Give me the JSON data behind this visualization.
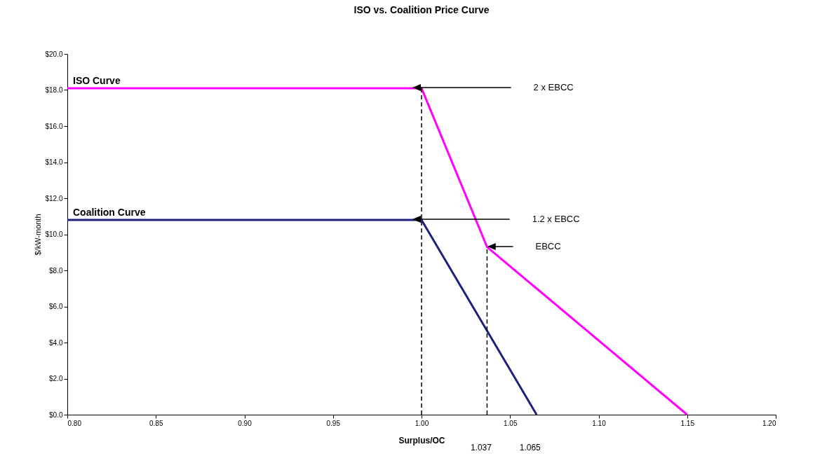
{
  "chart_data": {
    "type": "line",
    "title": "ISO vs. Coalition Price Curve",
    "xlabel": "Surplus/OC",
    "ylabel": "$/kW-month",
    "xlim": [
      0.8,
      1.2
    ],
    "ylim": [
      0,
      20
    ],
    "xticks": [
      {
        "value": 0.8,
        "label": "0.80"
      },
      {
        "value": 0.85,
        "label": "0.85"
      },
      {
        "value": 0.9,
        "label": "0.90"
      },
      {
        "value": 0.95,
        "label": "0.95"
      },
      {
        "value": 1.0,
        "label": "1.00"
      },
      {
        "value": 1.05,
        "label": "1.05"
      },
      {
        "value": 1.1,
        "label": "1.10"
      },
      {
        "value": 1.15,
        "label": "1.15"
      },
      {
        "value": 1.2,
        "label": "1.20"
      }
    ],
    "yticks": [
      {
        "value": 0,
        "label": "$0.0"
      },
      {
        "value": 2,
        "label": "$2.0"
      },
      {
        "value": 4,
        "label": "$4.0"
      },
      {
        "value": 6,
        "label": "$6.0"
      },
      {
        "value": 8,
        "label": "$8.0"
      },
      {
        "value": 10,
        "label": "$10.0"
      },
      {
        "value": 12,
        "label": "$12.0"
      },
      {
        "value": 14,
        "label": "$14.0"
      },
      {
        "value": 16,
        "label": "$16.0"
      },
      {
        "value": 18,
        "label": "$18.0"
      },
      {
        "value": 20,
        "label": "$20.0"
      }
    ],
    "grid": false,
    "legend": false,
    "marker": "none",
    "series": [
      {
        "name": "ISO Curve",
        "color": "#ff00ff",
        "line_style": "solid",
        "x": [
          0.8,
          1.0,
          1.037,
          1.15
        ],
        "values": [
          18.1,
          18.1,
          9.3,
          0
        ]
      },
      {
        "name": "Coalition Curve",
        "color": "#1f1f80",
        "line_style": "solid",
        "x": [
          0.8,
          1.0,
          1.065
        ],
        "values": [
          10.8,
          10.8,
          0
        ]
      }
    ],
    "ref_lines": [
      {
        "axis": "x",
        "value": 1.0,
        "color": "#000000",
        "line_style": "dashed"
      },
      {
        "axis": "x",
        "value": 1.037,
        "color": "#000000",
        "line_style": "dashed"
      }
    ],
    "annotations": [
      "2 x EBCC",
      "1.2 x EBCC",
      "EBCC",
      "1.037",
      "1.065"
    ]
  }
}
